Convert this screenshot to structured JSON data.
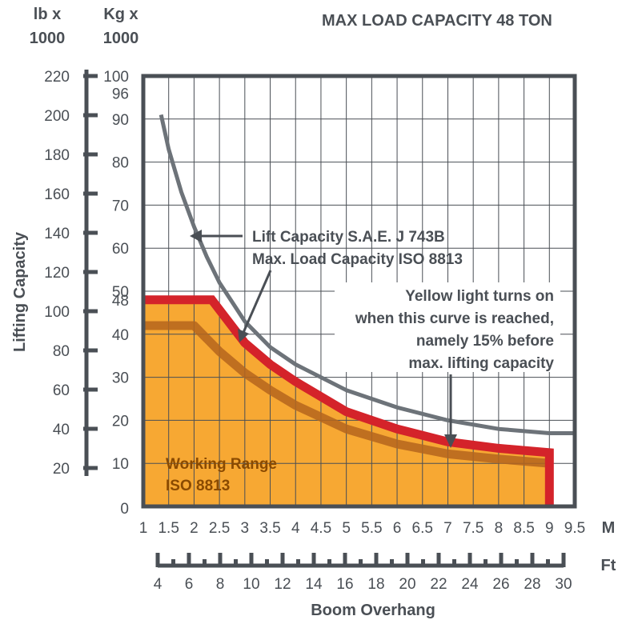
{
  "chart_data": {
    "type": "area",
    "title": "MAX LOAD CAPACITY 48 TON",
    "ylabel": "Lifting Capacity",
    "xlabel": "Boom Overhang",
    "y_unit_left": [
      "lb x",
      "1000"
    ],
    "y_unit_right": [
      "Kg x",
      "1000"
    ],
    "x_unit_primary": "M",
    "x_unit_secondary": "Ft",
    "xlim": [
      1,
      9.5
    ],
    "ylim_kg": [
      0,
      100
    ],
    "x_ticks_m": [
      "1",
      "1.5",
      "2",
      "2.5",
      "3",
      "3.5",
      "4",
      "4.5",
      "5",
      "5.5",
      "6",
      "6.5",
      "7",
      "7.5",
      "8",
      "8.5",
      "9",
      "9.5"
    ],
    "x_ticks_ft": [
      "4",
      "6",
      "8",
      "10",
      "12",
      "14",
      "16",
      "18",
      "20",
      "22",
      "24",
      "26",
      "28",
      "30"
    ],
    "y_ticks_lb": [
      "220",
      "200",
      "180",
      "160",
      "140",
      "120",
      "100",
      "80",
      "60",
      "40",
      "20"
    ],
    "y_ticks_kg": [
      "100",
      "96",
      "90",
      "80",
      "70",
      "60",
      "50",
      "48",
      "40",
      "30",
      "20",
      "10",
      "0"
    ],
    "grid": true,
    "series": [
      {
        "name": "Lift Capacity S.A.E. J 743B",
        "color": "#6d7379",
        "x": [
          1.35,
          1.5,
          1.75,
          2,
          2.25,
          2.5,
          3,
          3.5,
          4,
          5,
          6,
          7,
          8,
          9,
          9.5
        ],
        "y": [
          91,
          83,
          73,
          65,
          58,
          52,
          43,
          37,
          33,
          27,
          23,
          20,
          18,
          17,
          17
        ]
      },
      {
        "name": "Max. Load Capacity ISO 8813",
        "color": "#d4232a",
        "x": [
          1,
          2.35,
          3,
          3.5,
          4,
          5,
          6,
          7,
          8,
          9
        ],
        "y": [
          48,
          48,
          38,
          33,
          29,
          22,
          18,
          15,
          13.5,
          12.5
        ]
      },
      {
        "name": "Yellow light turns on when this curve is reached, namely 15% before max. lifting capacity",
        "color": "#b5651d",
        "x": [
          1,
          2,
          2.5,
          3,
          3.5,
          4,
          5,
          6,
          7,
          8,
          9
        ],
        "y": [
          42,
          42,
          36,
          31,
          27,
          23.5,
          18,
          14.5,
          12.2,
          11,
          10
        ]
      }
    ],
    "annotations": [
      {
        "lines": [
          "Lift Capacity S.A.E. J 743B",
          "Max. Load Capacity ISO 8813"
        ]
      },
      {
        "lines": [
          "Yellow light turns on",
          "when this curve is reached,",
          "namely 15% before",
          "max. lifting capacity"
        ]
      },
      {
        "lines": [
          "Working Range",
          "ISO 8813"
        ]
      }
    ],
    "colors": {
      "fill": "#f7a833",
      "red": "#d4232a",
      "warn": "#b5651d",
      "grey": "#6d7379",
      "grid": "#4a4f55"
    }
  }
}
